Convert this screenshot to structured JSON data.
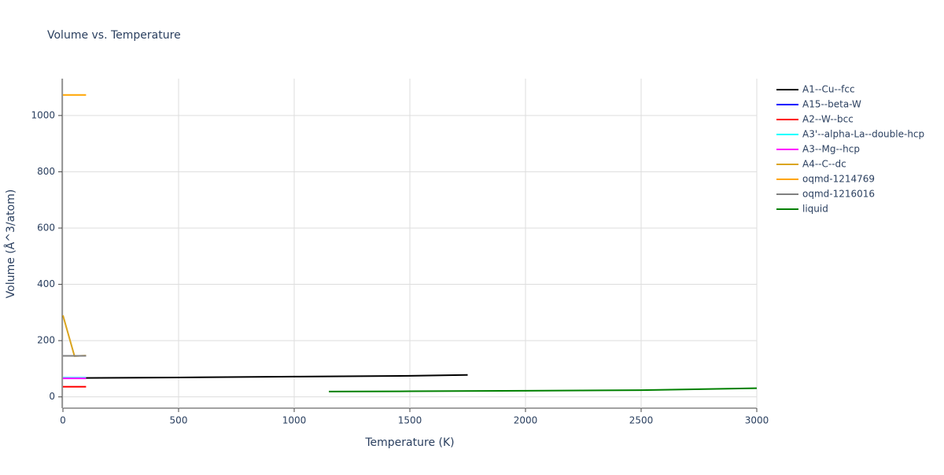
{
  "chart_data": {
    "type": "line",
    "title": "Volume vs. Temperature",
    "x_label": "Temperature (K)",
    "y_label": "Volume (Å^3/atom)",
    "xlim": [
      0,
      3000
    ],
    "ylim": [
      -40,
      1131
    ],
    "xticks": [
      0,
      500,
      1000,
      1500,
      2000,
      2500,
      3000
    ],
    "yticks": [
      0,
      200,
      400,
      600,
      800,
      1000
    ],
    "grid": true,
    "series": [
      {
        "name": "A1--Cu--fcc",
        "color": "#000000",
        "x": [
          0,
          500,
          1000,
          1500,
          1750
        ],
        "values": [
          67,
          69,
          72,
          75,
          78
        ]
      },
      {
        "name": "A15--beta-W",
        "color": "#0000ff",
        "x": [
          0,
          100
        ],
        "values": [
          146,
          146
        ]
      },
      {
        "name": "A2--W--bcc",
        "color": "#ff0000",
        "x": [
          0,
          100
        ],
        "values": [
          36,
          36
        ]
      },
      {
        "name": "A3'--alpha-La--double-hcp",
        "color": "#00ffff",
        "x": [
          0,
          100
        ],
        "values": [
          68,
          68
        ]
      },
      {
        "name": "A3--Mg--hcp",
        "color": "#ff00ff",
        "x": [
          0,
          100
        ],
        "values": [
          66,
          66
        ]
      },
      {
        "name": "A4--C--dc",
        "color": "#daa520",
        "x": [
          0,
          50,
          100
        ],
        "values": [
          290,
          145,
          147
        ]
      },
      {
        "name": "oqmd-1214769",
        "color": "#ffa500",
        "x": [
          0,
          100
        ],
        "values": [
          1073,
          1073
        ]
      },
      {
        "name": "oqmd-1216016",
        "color": "#808080",
        "x": [
          0,
          100
        ],
        "values": [
          146,
          146
        ]
      },
      {
        "name": "liquid",
        "color": "#008000",
        "x": [
          1150,
          1500,
          2000,
          2500,
          3000
        ],
        "values": [
          19,
          20,
          22,
          24,
          31
        ]
      }
    ]
  }
}
